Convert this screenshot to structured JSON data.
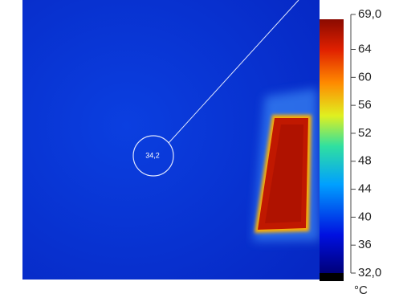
{
  "chart_data": {
    "type": "thermal-image",
    "annotation": "34,2",
    "unit": "°C",
    "clim": [
      32,
      69
    ],
    "cticks": [
      {
        "value": 69,
        "label": "69,0"
      },
      64,
      60,
      56,
      52,
      48,
      44,
      40,
      36,
      {
        "value": 32,
        "label": "32,0"
      }
    ]
  }
}
